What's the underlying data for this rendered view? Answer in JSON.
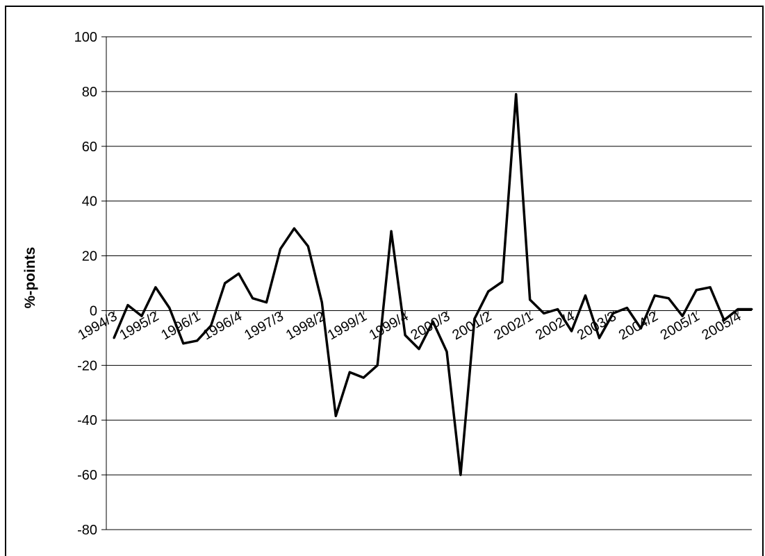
{
  "chart_data": {
    "type": "line",
    "title": "",
    "xlabel": "",
    "ylabel": "%-points",
    "ylim": [
      -80,
      100
    ],
    "yticks": [
      100,
      80,
      60,
      40,
      20,
      0,
      -20,
      -40,
      -60,
      -80
    ],
    "grid": "horizontal",
    "legend": "none",
    "line_color": "#000000",
    "x_tick_labels": [
      "1994/3",
      "1995/2",
      "1996/1",
      "1996/4",
      "1997/3",
      "1998/2",
      "1999/1",
      "1999/4",
      "2000/3",
      "2001/2",
      "2002/1",
      "2002/4",
      "2003/3",
      "2004/2",
      "2005/1",
      "2005/4"
    ],
    "x": [
      "1994/3",
      "1994/4",
      "1995/1",
      "1995/2",
      "1995/3",
      "1995/4",
      "1996/1",
      "1996/2",
      "1996/3",
      "1996/4",
      "1997/1",
      "1997/2",
      "1997/3",
      "1997/4",
      "1998/1",
      "1998/2",
      "1998/3",
      "1998/4",
      "1999/1",
      "1999/2",
      "1999/3",
      "1999/4",
      "2000/1",
      "2000/2",
      "2000/3",
      "2000/4",
      "2001/1",
      "2001/2",
      "2001/3",
      "2001/4",
      "2002/1",
      "2002/2",
      "2002/3",
      "2002/4",
      "2003/1",
      "2003/2",
      "2003/3",
      "2003/4",
      "2004/1",
      "2004/2",
      "2004/3",
      "2004/4",
      "2005/1",
      "2005/2",
      "2005/3",
      "2005/4",
      "2006/1"
    ],
    "values": [
      -10,
      2,
      -2,
      8.5,
      1,
      -12,
      -11,
      -5.5,
      10,
      13.5,
      4.5,
      3,
      22.5,
      30,
      23.5,
      3,
      -38.5,
      -22.5,
      -24.5,
      -20,
      29,
      -9,
      -14,
      -4,
      -15,
      -60,
      -3,
      7,
      10.5,
      79,
      4,
      -1,
      0.5,
      -7.5,
      5.5,
      -10,
      -1,
      1,
      -6.5,
      5.5,
      4.5,
      -2,
      7.5,
      8.5,
      -3.5,
      0.5,
      0.5
    ]
  }
}
